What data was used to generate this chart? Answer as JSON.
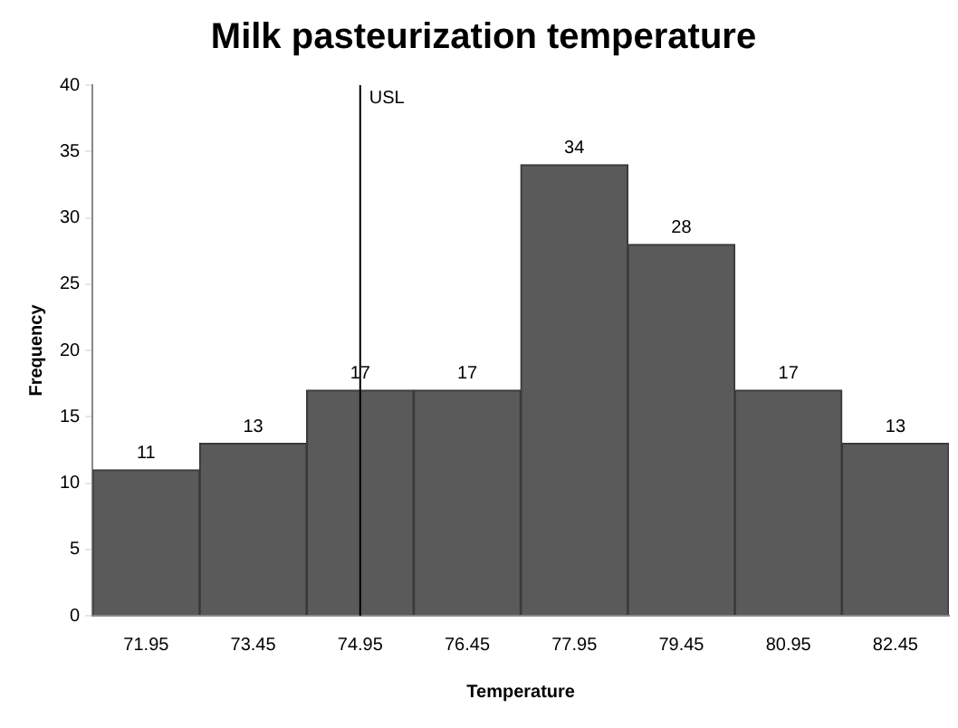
{
  "chart_data": {
    "type": "bar",
    "title": "Milk pasteurization temperature",
    "xlabel": "Temperature",
    "ylabel": "Frequency",
    "categories": [
      "71.95",
      "73.45",
      "74.95",
      "76.45",
      "77.95",
      "79.45",
      "80.95",
      "82.45"
    ],
    "values": [
      11,
      13,
      17,
      17,
      34,
      28,
      17,
      13
    ],
    "color": "#5a5a5a",
    "ylim": [
      0,
      40
    ],
    "yticks": [
      0,
      5,
      10,
      15,
      20,
      25,
      30,
      35,
      40
    ],
    "grid": false,
    "legend": false,
    "data_labels": true,
    "ref_lines": [
      {
        "axis": "x",
        "value": "74.95",
        "label": "USL",
        "color": "#000000"
      }
    ]
  }
}
